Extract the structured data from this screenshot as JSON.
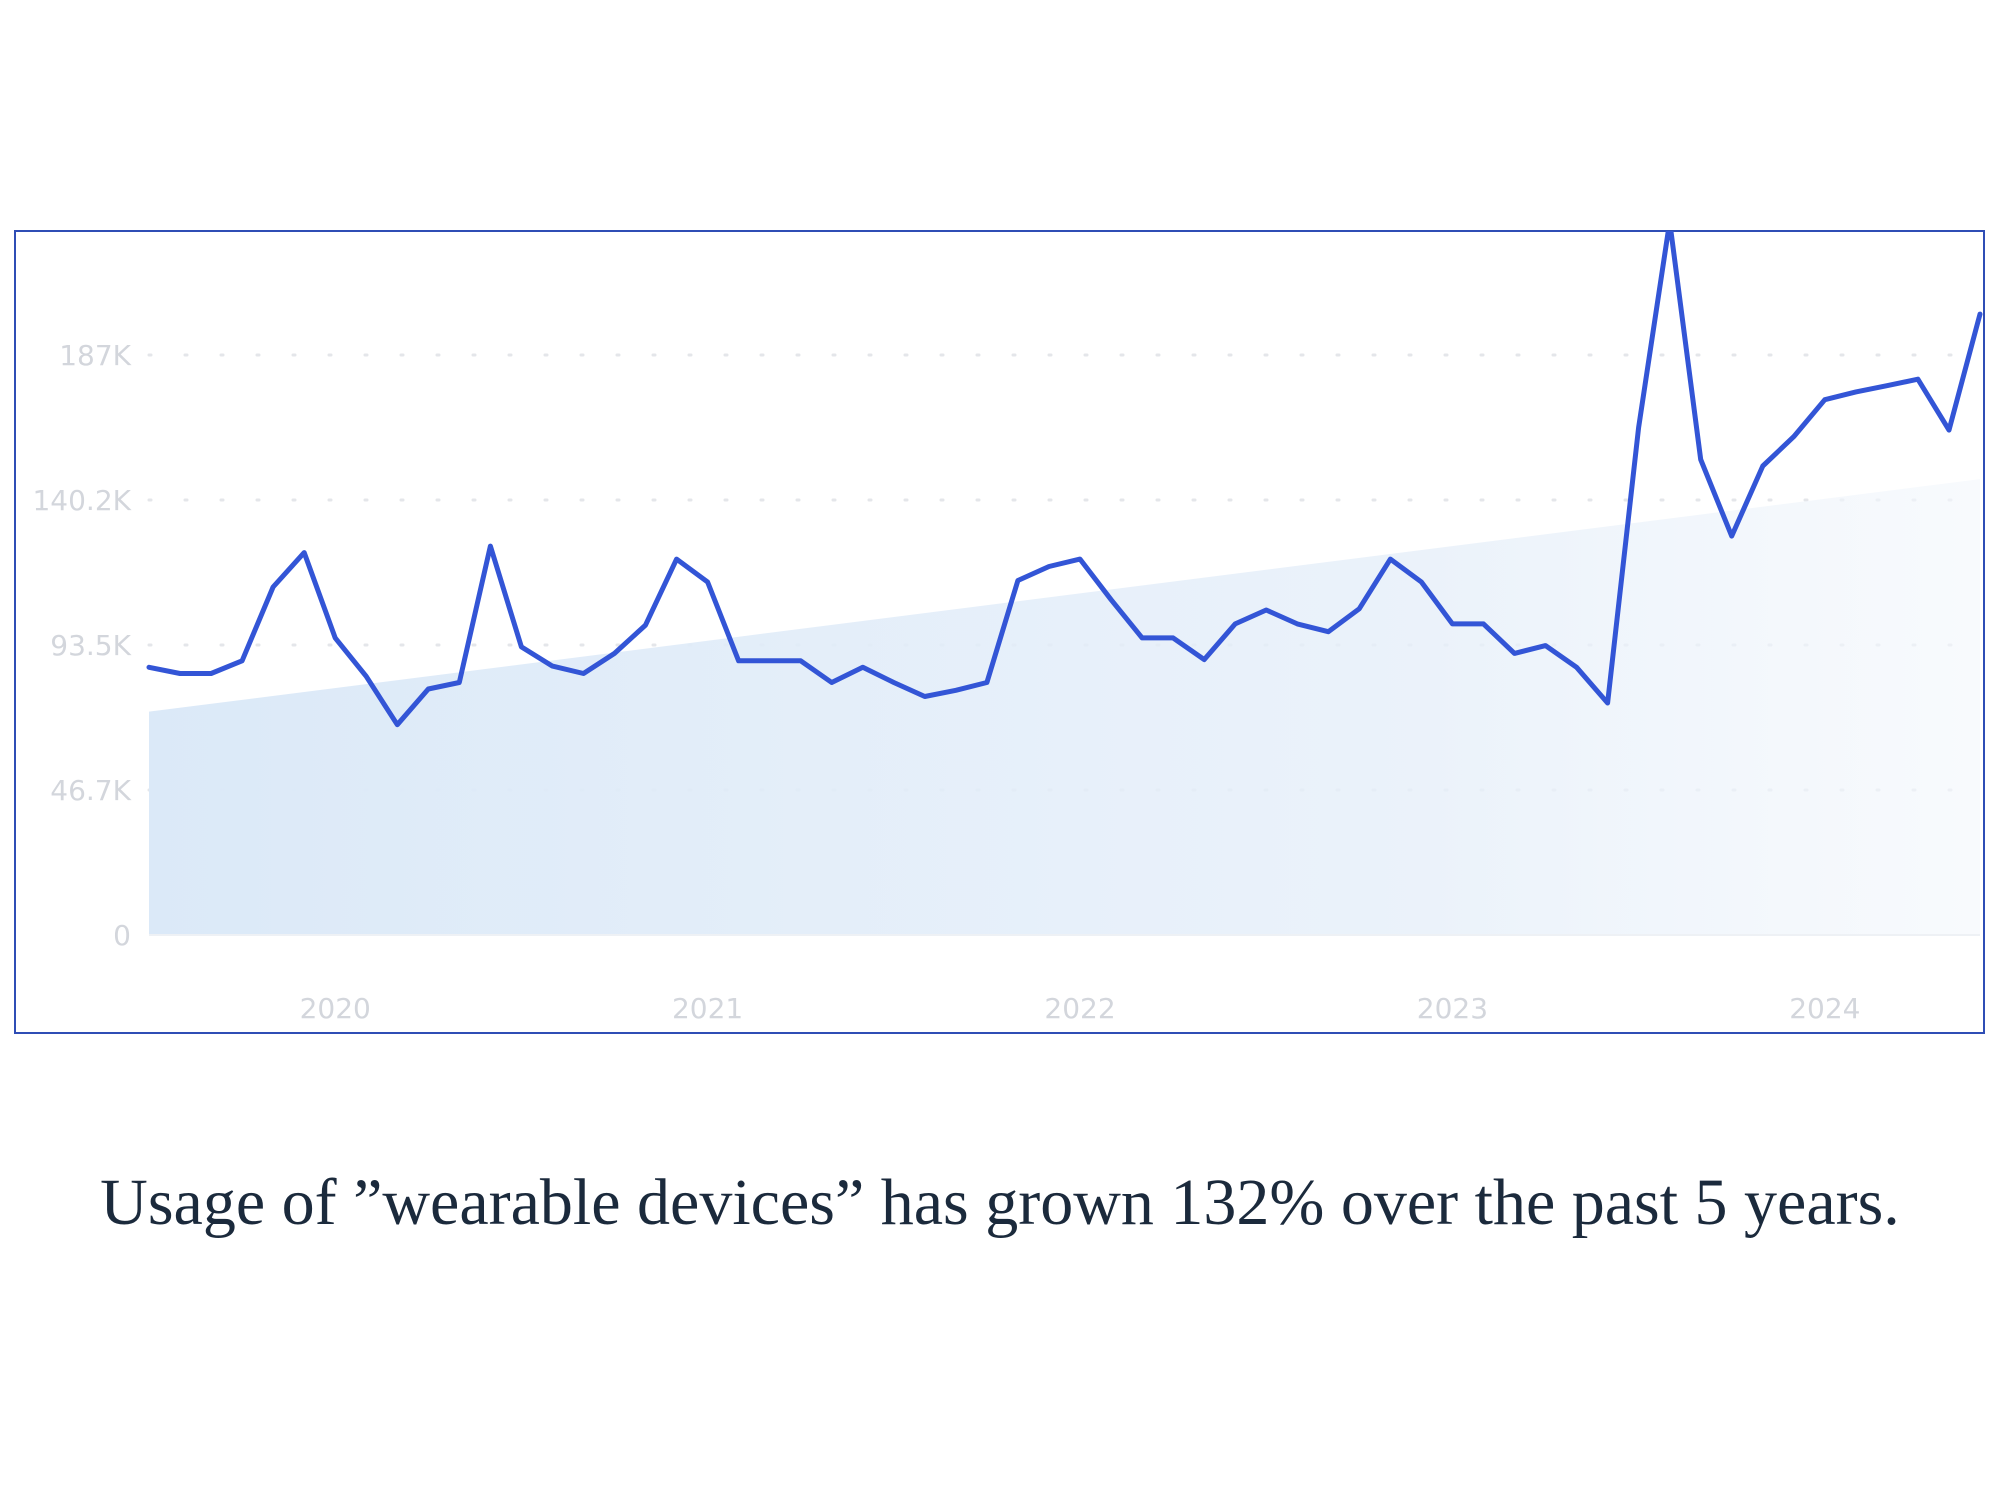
{
  "chart_data": {
    "type": "line",
    "title": "",
    "xlabel": "",
    "ylabel": "",
    "ylim": [
      0,
      227
    ],
    "y_unit": "K",
    "grid": true,
    "y_ticks": [
      "0",
      "46.7K",
      "93.5K",
      "140.2K",
      "187K"
    ],
    "y_tick_values": [
      0,
      46.75,
      93.5,
      140.25,
      187
    ],
    "x_ticks": [
      "2020",
      "2021",
      "2022",
      "2023",
      "2024"
    ],
    "x_tick_months": [
      "2020-01",
      "2021-01",
      "2022-01",
      "2023-01",
      "2024-01"
    ],
    "x_start": "2019-07",
    "x_end": "2024-06",
    "series": [
      {
        "color": "#3355d6",
        "values": [
          86.3,
          84.3,
          84.3,
          88.4,
          112.2,
          123.3,
          95.8,
          83.4,
          67.8,
          79.3,
          81.4,
          125.4,
          92.9,
          86.7,
          84.3,
          90.8,
          99.9,
          121.2,
          113.8,
          88.4,
          88.4,
          88.4,
          81.4,
          86.3,
          81.4,
          76.9,
          78.9,
          81.4,
          114.3,
          118.8,
          121.2,
          108.1,
          95.8,
          95.8,
          88.8,
          100.3,
          104.8,
          100.3,
          97.8,
          105.2,
          121.2,
          113.8,
          100.3,
          100.3,
          90.8,
          93.3,
          86.3,
          74.8,
          163.6,
          230,
          153.3,
          128.6,
          151.2,
          160.7,
          172.6,
          175.1,
          177.1,
          179.2,
          162.8,
          200.2
        ]
      }
    ],
    "trend_area": {
      "color": "#dbe9f8",
      "start": 72,
      "end": 147
    }
  },
  "caption": "Usage of ”wearable devices” has grown 132% over the past 5 years."
}
